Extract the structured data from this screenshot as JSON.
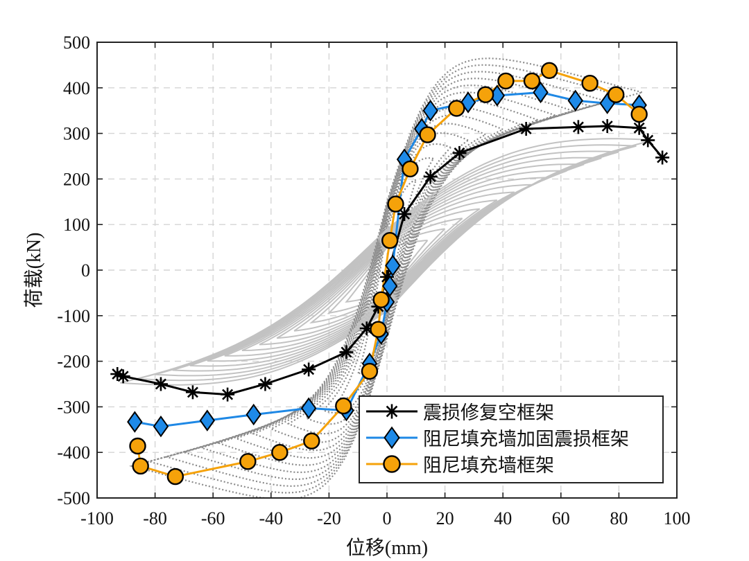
{
  "chart_data": {
    "type": "line",
    "xlabel": "位移(mm)",
    "ylabel": "荷载(kN)",
    "xlim": [
      -100,
      100
    ],
    "ylim": [
      -500,
      500
    ],
    "xticks": [
      -100,
      -80,
      -60,
      -40,
      -20,
      0,
      20,
      40,
      60,
      80,
      100
    ],
    "yticks": [
      -500,
      -400,
      -300,
      -200,
      -100,
      0,
      100,
      200,
      300,
      400,
      500
    ],
    "grid": true,
    "legend_position": "bottom-right",
    "series": [
      {
        "name": "震损修复空框架",
        "color": "#000000",
        "marker": "asterisk",
        "x": [
          -93,
          -91,
          -78,
          -67,
          -55,
          -42,
          -27,
          -14,
          -7,
          -3,
          0,
          6,
          15,
          25,
          48,
          66,
          76,
          87,
          90,
          95
        ],
        "y": [
          -228,
          -233,
          -250,
          -268,
          -273,
          -250,
          -218,
          -180,
          -128,
          -80,
          -15,
          123,
          205,
          257,
          310,
          314,
          316,
          312,
          285,
          247
        ]
      },
      {
        "name": "阻尼填充墙加固震损框架",
        "color": "#1e88e5",
        "marker": "diamond",
        "x": [
          -87,
          -78,
          -62,
          -46,
          -27,
          -14,
          -6,
          -2,
          0,
          1,
          2,
          6,
          12,
          15,
          28,
          38,
          53,
          65,
          76,
          87
        ],
        "y": [
          -333,
          -343,
          -330,
          -317,
          -303,
          -308,
          -205,
          -140,
          -70,
          -35,
          10,
          243,
          310,
          350,
          368,
          383,
          390,
          372,
          366,
          362
        ]
      },
      {
        "name": "阻尼填充墙框架",
        "color": "#f5a20a",
        "marker": "circle",
        "x": [
          -86,
          -85,
          -73,
          -48,
          -37,
          -26,
          -15,
          -6,
          -3,
          -2,
          1,
          3,
          8,
          14,
          24,
          34,
          41,
          50,
          56,
          70,
          79,
          87
        ],
        "y": [
          -386,
          -430,
          -453,
          -420,
          -400,
          -375,
          -298,
          -222,
          -130,
          -65,
          65,
          145,
          222,
          297,
          355,
          385,
          415,
          415,
          438,
          410,
          385,
          342
        ]
      }
    ],
    "background_curves_note": "grey hysteresis loops"
  }
}
